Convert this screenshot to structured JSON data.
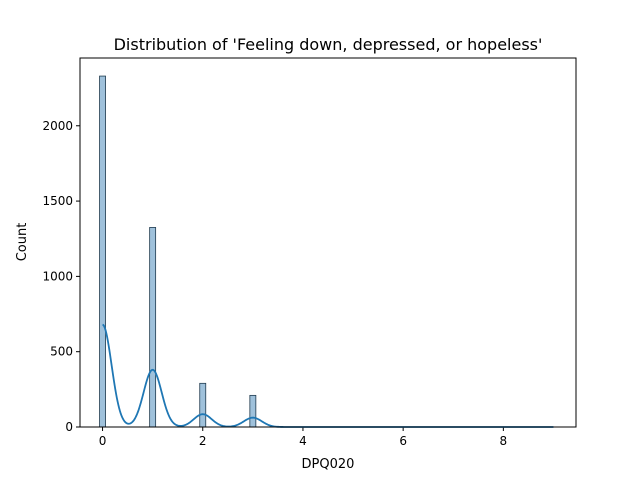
{
  "chart_data": {
    "type": "bar",
    "title": "Distribution of 'Feeling down, depressed, or hopeless'",
    "xlabel": "DPQ020",
    "ylabel": "Count",
    "xlim": [
      -0.45,
      9.45
    ],
    "ylim": [
      0,
      2450
    ],
    "xticks": [
      0,
      2,
      4,
      6,
      8
    ],
    "yticks": [
      0,
      500,
      1000,
      1500,
      2000
    ],
    "bin_width": 0.12,
    "bars": [
      {
        "x": 0,
        "value": 2330
      },
      {
        "x": 1,
        "value": 1325
      },
      {
        "x": 2,
        "value": 290
      },
      {
        "x": 3,
        "value": 210
      }
    ],
    "kde_peaks": [
      {
        "x": 0,
        "value": 680
      },
      {
        "x": 1,
        "value": 380
      },
      {
        "x": 2,
        "value": 85
      },
      {
        "x": 3,
        "value": 62
      }
    ],
    "kde_range": [
      0,
      9
    ],
    "bar_color": "#9fc1db",
    "line_color": "#1f77b4",
    "grid": false,
    "legend": "none"
  }
}
